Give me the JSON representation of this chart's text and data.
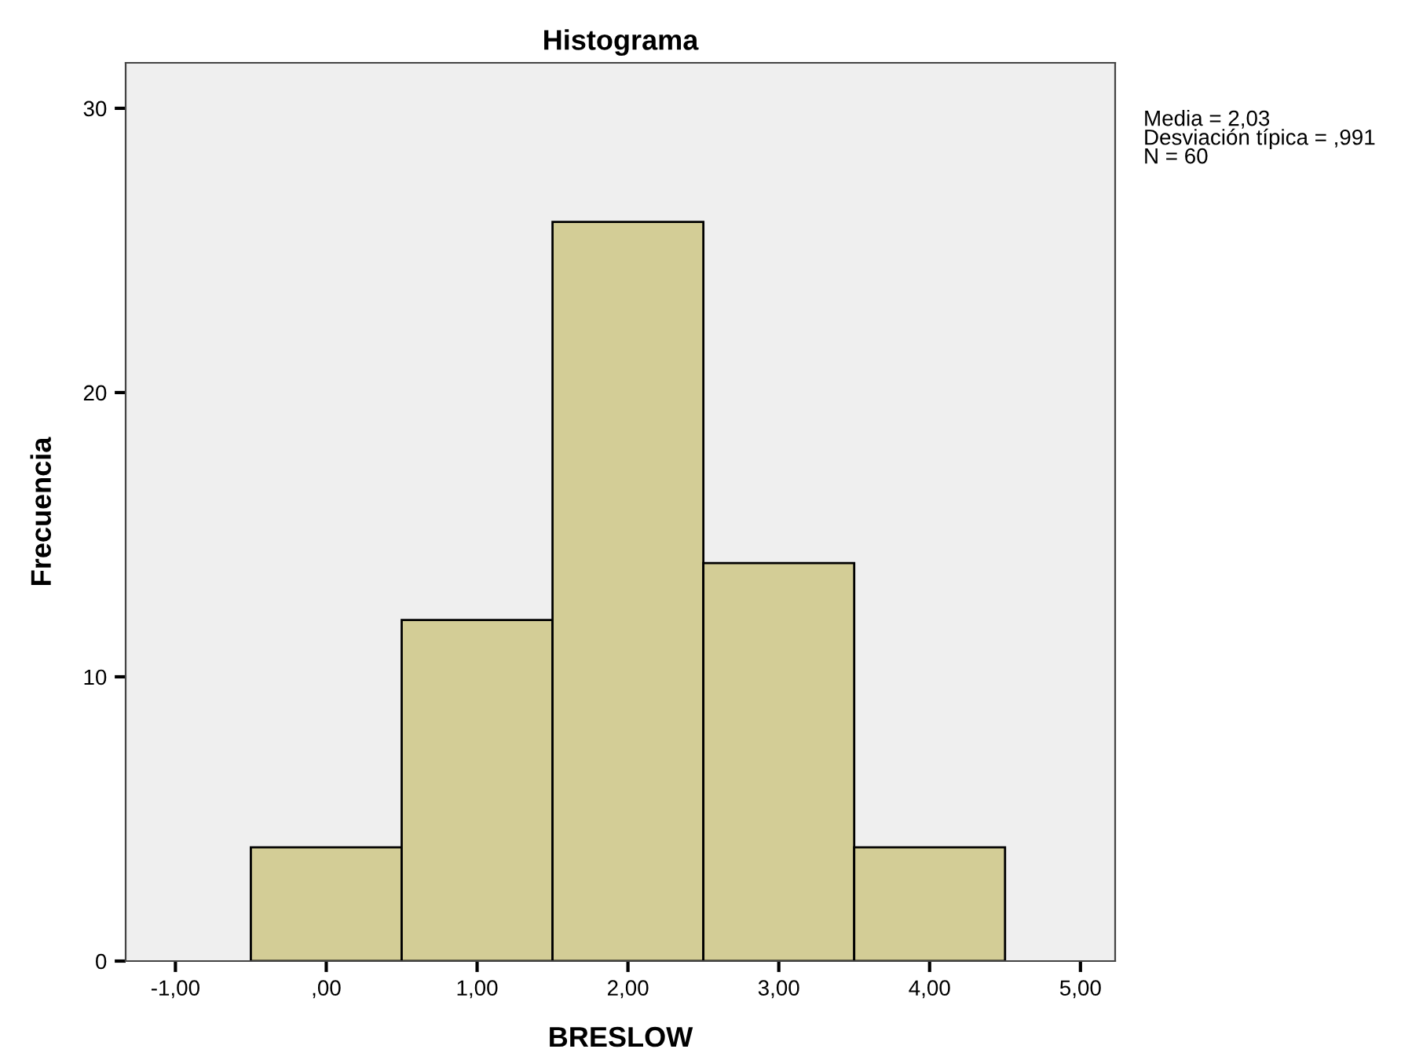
{
  "chart_data": {
    "type": "histogram",
    "title": "Histograma",
    "xlabel": "BRESLOW",
    "ylabel": "Frecuencia",
    "bins": [
      -0.5,
      0.5,
      1.5,
      2.5,
      3.5,
      4.5
    ],
    "values": [
      4,
      12,
      26,
      14,
      4
    ],
    "color": "#d3cd96",
    "xlim": [
      -1.33,
      5.23
    ],
    "xticks": [
      {
        "value": -1,
        "label": "-1,00"
      },
      {
        "value": 0,
        "label": ",00"
      },
      {
        "value": 1,
        "label": "1,00"
      },
      {
        "value": 2,
        "label": "2,00"
      },
      {
        "value": 3,
        "label": "3,00"
      },
      {
        "value": 4,
        "label": "4,00"
      },
      {
        "value": 5,
        "label": "5,00"
      }
    ],
    "ylim": [
      0,
      31.6
    ],
    "yticks": [
      0,
      10,
      20,
      30
    ],
    "grid": false,
    "annotations": [
      "Media = 2,03\nDesviación típica = ,991\nN = 60"
    ]
  }
}
